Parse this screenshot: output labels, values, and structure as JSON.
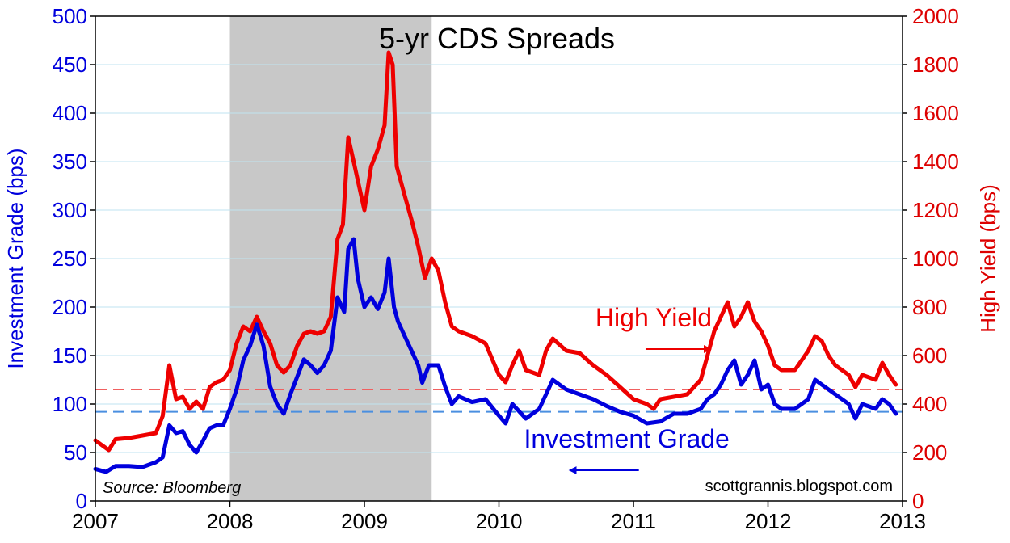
{
  "chart_data": {
    "type": "line",
    "title": "5-yr CDS Spreads",
    "source_note": "Source: Bloomberg",
    "credit": "scottgrannis.blogspot.com",
    "x_ticks": [
      "2007",
      "2008",
      "2009",
      "2010",
      "2011",
      "2012",
      "2013"
    ],
    "xlim": [
      2007,
      2013
    ],
    "left_axis": {
      "label": "Investment Grade (bps)",
      "ylim": [
        0,
        500
      ],
      "ticks": [
        0,
        50,
        100,
        150,
        200,
        250,
        300,
        350,
        400,
        450,
        500
      ],
      "color": "#0000dd"
    },
    "right_axis": {
      "label": "High Yield (bps)",
      "ylim": [
        0,
        2000
      ],
      "ticks": [
        0,
        200,
        400,
        600,
        800,
        1000,
        1200,
        1400,
        1600,
        1800,
        2000
      ],
      "color": "#dd0000"
    },
    "shaded_region": {
      "x": [
        2008.0,
        2009.5
      ]
    },
    "grid": true,
    "series": [
      {
        "name": "Investment Grade",
        "axis": "left",
        "color": "#0000dd",
        "reference_line": 92,
        "points": [
          [
            2007.0,
            33
          ],
          [
            2007.08,
            30
          ],
          [
            2007.15,
            36
          ],
          [
            2007.25,
            36
          ],
          [
            2007.35,
            35
          ],
          [
            2007.45,
            40
          ],
          [
            2007.5,
            45
          ],
          [
            2007.55,
            78
          ],
          [
            2007.6,
            70
          ],
          [
            2007.65,
            72
          ],
          [
            2007.7,
            58
          ],
          [
            2007.75,
            50
          ],
          [
            2007.8,
            62
          ],
          [
            2007.85,
            75
          ],
          [
            2007.9,
            78
          ],
          [
            2007.95,
            78
          ],
          [
            2008.0,
            95
          ],
          [
            2008.05,
            115
          ],
          [
            2008.1,
            145
          ],
          [
            2008.15,
            160
          ],
          [
            2008.2,
            182
          ],
          [
            2008.25,
            160
          ],
          [
            2008.3,
            118
          ],
          [
            2008.35,
            100
          ],
          [
            2008.4,
            90
          ],
          [
            2008.45,
            110
          ],
          [
            2008.5,
            128
          ],
          [
            2008.55,
            146
          ],
          [
            2008.6,
            140
          ],
          [
            2008.65,
            132
          ],
          [
            2008.7,
            140
          ],
          [
            2008.75,
            155
          ],
          [
            2008.8,
            210
          ],
          [
            2008.85,
            195
          ],
          [
            2008.88,
            260
          ],
          [
            2008.92,
            270
          ],
          [
            2008.95,
            230
          ],
          [
            2009.0,
            200
          ],
          [
            2009.05,
            210
          ],
          [
            2009.1,
            198
          ],
          [
            2009.15,
            215
          ],
          [
            2009.18,
            250
          ],
          [
            2009.22,
            200
          ],
          [
            2009.25,
            185
          ],
          [
            2009.3,
            170
          ],
          [
            2009.35,
            155
          ],
          [
            2009.4,
            140
          ],
          [
            2009.43,
            122
          ],
          [
            2009.48,
            140
          ],
          [
            2009.55,
            140
          ],
          [
            2009.6,
            118
          ],
          [
            2009.65,
            100
          ],
          [
            2009.7,
            108
          ],
          [
            2009.8,
            102
          ],
          [
            2009.9,
            105
          ],
          [
            2010.0,
            88
          ],
          [
            2010.05,
            80
          ],
          [
            2010.1,
            100
          ],
          [
            2010.2,
            85
          ],
          [
            2010.3,
            95
          ],
          [
            2010.35,
            110
          ],
          [
            2010.4,
            125
          ],
          [
            2010.5,
            115
          ],
          [
            2010.6,
            110
          ],
          [
            2010.7,
            105
          ],
          [
            2010.8,
            98
          ],
          [
            2010.9,
            92
          ],
          [
            2011.0,
            88
          ],
          [
            2011.1,
            80
          ],
          [
            2011.2,
            82
          ],
          [
            2011.3,
            90
          ],
          [
            2011.4,
            90
          ],
          [
            2011.5,
            95
          ],
          [
            2011.55,
            105
          ],
          [
            2011.6,
            110
          ],
          [
            2011.65,
            120
          ],
          [
            2011.7,
            135
          ],
          [
            2011.75,
            145
          ],
          [
            2011.8,
            120
          ],
          [
            2011.85,
            130
          ],
          [
            2011.9,
            145
          ],
          [
            2011.95,
            115
          ],
          [
            2012.0,
            120
          ],
          [
            2012.05,
            100
          ],
          [
            2012.1,
            95
          ],
          [
            2012.2,
            95
          ],
          [
            2012.3,
            105
          ],
          [
            2012.35,
            125
          ],
          [
            2012.4,
            120
          ],
          [
            2012.5,
            110
          ],
          [
            2012.6,
            100
          ],
          [
            2012.65,
            85
          ],
          [
            2012.7,
            100
          ],
          [
            2012.8,
            95
          ],
          [
            2012.85,
            105
          ],
          [
            2012.9,
            100
          ],
          [
            2012.95,
            90
          ]
        ]
      },
      {
        "name": "High Yield",
        "axis": "right",
        "color": "#ee0000",
        "reference_line": 460,
        "points": [
          [
            2007.0,
            250
          ],
          [
            2007.05,
            230
          ],
          [
            2007.1,
            210
          ],
          [
            2007.15,
            255
          ],
          [
            2007.25,
            260
          ],
          [
            2007.35,
            270
          ],
          [
            2007.45,
            280
          ],
          [
            2007.5,
            350
          ],
          [
            2007.55,
            560
          ],
          [
            2007.6,
            420
          ],
          [
            2007.65,
            430
          ],
          [
            2007.7,
            380
          ],
          [
            2007.75,
            410
          ],
          [
            2007.8,
            380
          ],
          [
            2007.85,
            470
          ],
          [
            2007.9,
            490
          ],
          [
            2007.95,
            500
          ],
          [
            2008.0,
            540
          ],
          [
            2008.05,
            650
          ],
          [
            2008.1,
            720
          ],
          [
            2008.15,
            700
          ],
          [
            2008.2,
            760
          ],
          [
            2008.25,
            700
          ],
          [
            2008.3,
            650
          ],
          [
            2008.35,
            560
          ],
          [
            2008.4,
            530
          ],
          [
            2008.45,
            560
          ],
          [
            2008.5,
            640
          ],
          [
            2008.55,
            690
          ],
          [
            2008.6,
            700
          ],
          [
            2008.65,
            690
          ],
          [
            2008.7,
            700
          ],
          [
            2008.75,
            760
          ],
          [
            2008.8,
            1080
          ],
          [
            2008.84,
            1140
          ],
          [
            2008.88,
            1500
          ],
          [
            2008.92,
            1400
          ],
          [
            2008.96,
            1300
          ],
          [
            2009.0,
            1200
          ],
          [
            2009.05,
            1380
          ],
          [
            2009.1,
            1450
          ],
          [
            2009.15,
            1550
          ],
          [
            2009.18,
            1850
          ],
          [
            2009.21,
            1800
          ],
          [
            2009.24,
            1380
          ],
          [
            2009.3,
            1260
          ],
          [
            2009.35,
            1160
          ],
          [
            2009.4,
            1050
          ],
          [
            2009.45,
            920
          ],
          [
            2009.5,
            1000
          ],
          [
            2009.55,
            950
          ],
          [
            2009.6,
            820
          ],
          [
            2009.65,
            720
          ],
          [
            2009.7,
            700
          ],
          [
            2009.8,
            680
          ],
          [
            2009.9,
            650
          ],
          [
            2010.0,
            520
          ],
          [
            2010.05,
            490
          ],
          [
            2010.1,
            560
          ],
          [
            2010.15,
            620
          ],
          [
            2010.2,
            540
          ],
          [
            2010.3,
            520
          ],
          [
            2010.35,
            620
          ],
          [
            2010.4,
            670
          ],
          [
            2010.5,
            620
          ],
          [
            2010.6,
            610
          ],
          [
            2010.7,
            560
          ],
          [
            2010.8,
            520
          ],
          [
            2010.9,
            470
          ],
          [
            2011.0,
            420
          ],
          [
            2011.1,
            400
          ],
          [
            2011.15,
            380
          ],
          [
            2011.2,
            420
          ],
          [
            2011.3,
            430
          ],
          [
            2011.4,
            440
          ],
          [
            2011.5,
            500
          ],
          [
            2011.55,
            600
          ],
          [
            2011.6,
            700
          ],
          [
            2011.65,
            760
          ],
          [
            2011.7,
            820
          ],
          [
            2011.75,
            720
          ],
          [
            2011.8,
            760
          ],
          [
            2011.85,
            820
          ],
          [
            2011.9,
            740
          ],
          [
            2011.95,
            700
          ],
          [
            2012.0,
            640
          ],
          [
            2012.05,
            560
          ],
          [
            2012.1,
            540
          ],
          [
            2012.2,
            540
          ],
          [
            2012.25,
            580
          ],
          [
            2012.3,
            620
          ],
          [
            2012.35,
            680
          ],
          [
            2012.4,
            660
          ],
          [
            2012.45,
            600
          ],
          [
            2012.5,
            560
          ],
          [
            2012.6,
            520
          ],
          [
            2012.65,
            470
          ],
          [
            2012.7,
            520
          ],
          [
            2012.8,
            500
          ],
          [
            2012.85,
            570
          ],
          [
            2012.9,
            520
          ],
          [
            2012.95,
            480
          ]
        ]
      }
    ],
    "annotations": [
      {
        "text": "High Yield",
        "color": "#ee0000",
        "arrow": "right",
        "x": 2011.15,
        "y_axis": "right",
        "y": 720
      },
      {
        "text": "Investment Grade",
        "color": "#0000dd",
        "arrow": "left",
        "x": 2010.95,
        "y_axis": "left",
        "y": 55
      }
    ]
  }
}
